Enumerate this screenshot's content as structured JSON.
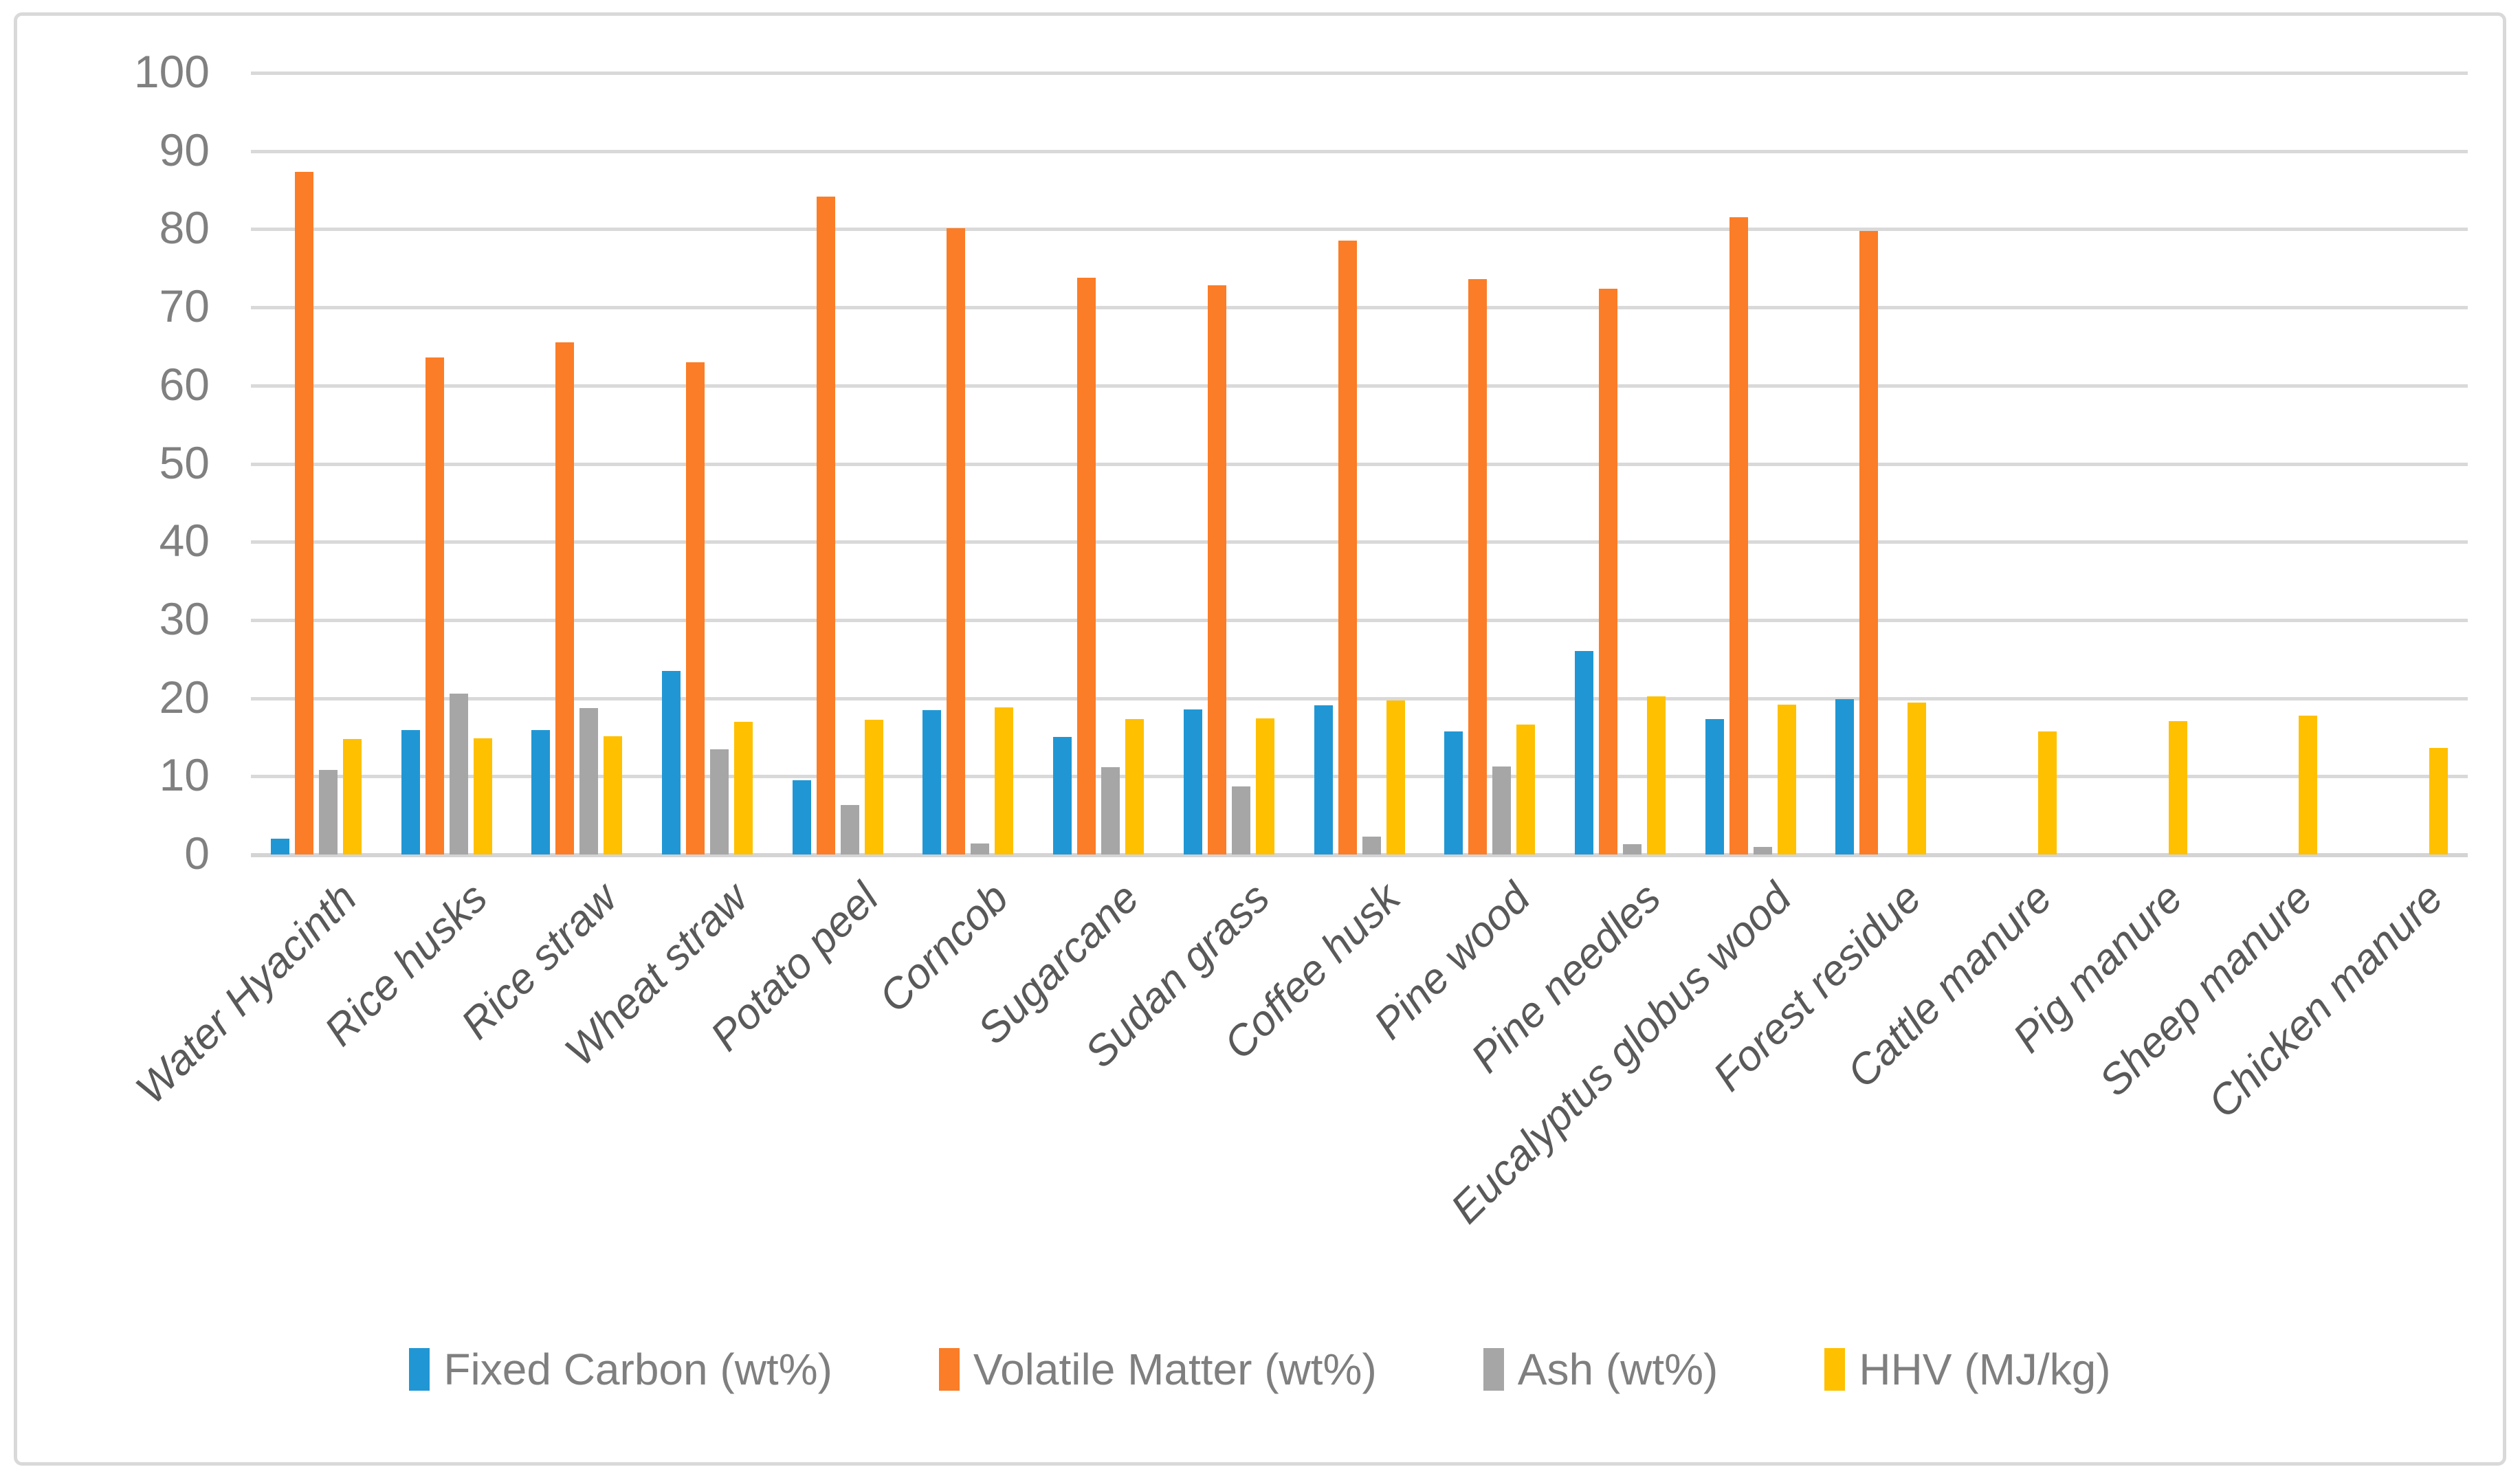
{
  "figure": {
    "background": "#FFFFFF",
    "border_color": "#D9D9D9",
    "gridline_color": "#D9D9D9",
    "axis_tick_color": "#808080",
    "category_label_color": "#595959",
    "legend_text_color": "#7F7F7F"
  },
  "chart_data": {
    "type": "bar",
    "title": "",
    "xlabel": "",
    "ylabel": "",
    "ylim": [
      0,
      100
    ],
    "ytick_step": 10,
    "grid": true,
    "legend_position": "bottom-center",
    "categories": [
      "Water Hyacinth",
      "Rice husks",
      "Rice straw",
      "Wheat straw",
      "Potato peel",
      "Corncob",
      "Sugarcane",
      "Sudan grass",
      "Coffee husk",
      "Pine wood",
      "Pine needles",
      "Eucalyptus globus wood",
      "Forest residue",
      "Cattle manure",
      "Pig manure",
      "Sheep manure",
      "Chicken manure"
    ],
    "series": [
      {
        "name": "Fixed Carbon (wt%)",
        "color": "#2097D4",
        "values": [
          2.0,
          15.9,
          15.9,
          23.5,
          9.5,
          18.5,
          15.0,
          18.6,
          19.1,
          15.7,
          26.0,
          17.3,
          19.9,
          0,
          0,
          0,
          0
        ]
      },
      {
        "name": "Volatile Matter (wt%)",
        "color": "#FB7D27",
        "values": [
          87.3,
          63.6,
          65.5,
          63.0,
          84.2,
          80.1,
          73.8,
          72.8,
          78.5,
          73.6,
          72.4,
          81.5,
          79.8,
          0,
          0,
          0,
          0
        ]
      },
      {
        "name": "Ash (wt%)",
        "color": "#A6A6A6",
        "values": [
          10.8,
          20.6,
          18.7,
          13.5,
          6.3,
          1.4,
          11.2,
          8.7,
          2.3,
          11.3,
          1.3,
          1.0,
          0,
          0,
          0,
          0,
          0
        ]
      },
      {
        "name": "HHV (MJ/kg)",
        "color": "#FFC000",
        "values": [
          14.8,
          14.9,
          15.1,
          17.0,
          17.2,
          18.8,
          17.3,
          17.4,
          19.7,
          16.6,
          20.2,
          19.2,
          19.4,
          15.7,
          17.1,
          17.8,
          13.6
        ]
      }
    ]
  }
}
